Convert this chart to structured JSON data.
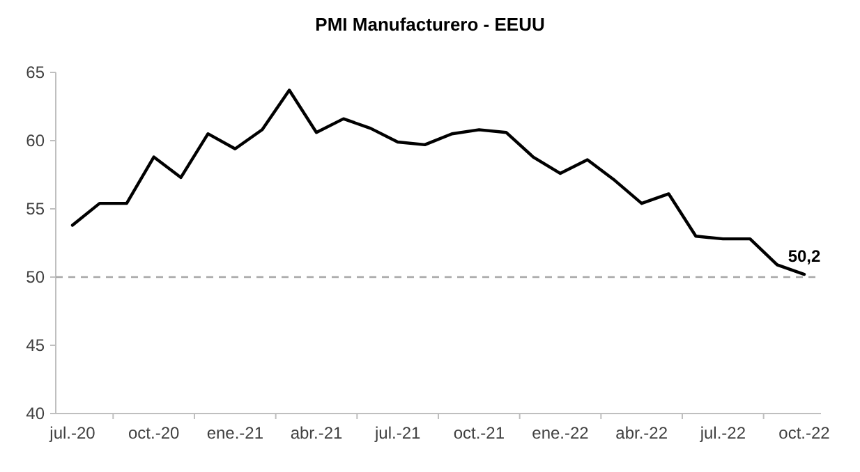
{
  "chart_data": {
    "type": "line",
    "title": "PMI Manufacturero - EEUU",
    "categories": [
      "jul.-20",
      null,
      null,
      "oct.-20",
      null,
      null,
      "ene.-21",
      null,
      null,
      "abr.-21",
      null,
      null,
      "jul.-21",
      null,
      null,
      "oct.-21",
      null,
      null,
      "ene.-22",
      null,
      null,
      "abr.-22",
      null,
      null,
      "jul.-22",
      null,
      null,
      "oct.-22"
    ],
    "series": [
      {
        "color": "#000000",
        "values": [
          53.8,
          55.4,
          55.4,
          58.8,
          57.3,
          60.5,
          59.4,
          60.8,
          63.7,
          60.6,
          61.6,
          60.9,
          59.9,
          59.7,
          60.5,
          60.8,
          60.6,
          58.8,
          57.6,
          58.6,
          57.1,
          55.4,
          56.1,
          53.0,
          52.8,
          52.8,
          50.9,
          50.2
        ],
        "value_labels": [
          null,
          null,
          null,
          null,
          null,
          null,
          null,
          null,
          null,
          null,
          null,
          null,
          null,
          null,
          null,
          null,
          null,
          null,
          null,
          null,
          null,
          null,
          null,
          null,
          null,
          null,
          null,
          "50,2"
        ]
      }
    ],
    "ylim": [
      40,
      65
    ],
    "yticks": [
      40,
      45,
      50,
      55,
      60,
      65
    ],
    "grid": false,
    "marker": "none",
    "line_style": "solid",
    "ref_lines": [
      {
        "axis": "y",
        "value": 50,
        "color": "#a6a6a6",
        "line_style": "dashed"
      }
    ]
  }
}
